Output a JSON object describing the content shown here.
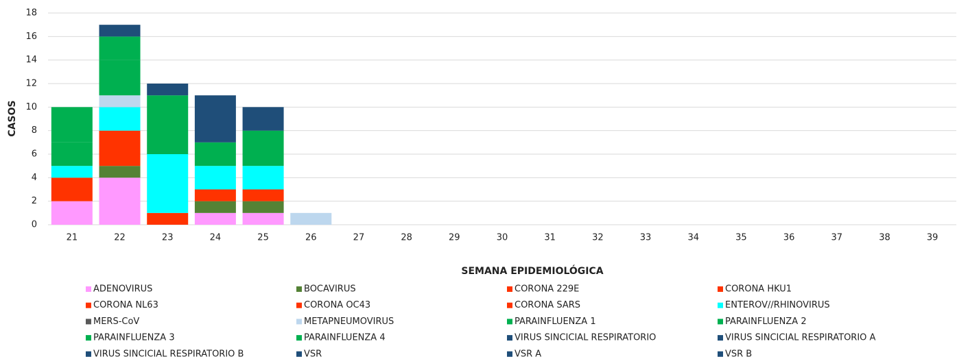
{
  "chart_data": {
    "type": "stacked_bar",
    "x_label": "SEMANA EPIDEMIOLÓGICA",
    "y_label": "CASOS",
    "categories": [
      "21",
      "22",
      "23",
      "24",
      "25",
      "26",
      "27",
      "28",
      "29",
      "30",
      "31",
      "32",
      "33",
      "34",
      "35",
      "36",
      "37",
      "38",
      "39"
    ],
    "ylim": [
      0,
      18
    ],
    "yticks": [
      0,
      2,
      4,
      6,
      8,
      10,
      12,
      14,
      16,
      18
    ],
    "grid": true,
    "legend": "bottom",
    "series": [
      {
        "name": "ADENOVIRUS",
        "color": "#ff99ff",
        "values": [
          2,
          4,
          0,
          1,
          1,
          0,
          0,
          0,
          0,
          0,
          0,
          0,
          0,
          0,
          0,
          0,
          0,
          0,
          0
        ]
      },
      {
        "name": "BOCAVIRUS",
        "color": "#548235",
        "values": [
          0,
          1,
          0,
          1,
          1,
          0,
          0,
          0,
          0,
          0,
          0,
          0,
          0,
          0,
          0,
          0,
          0,
          0,
          0
        ]
      },
      {
        "name": "CORONA 229E",
        "color": "#ff3300",
        "values": [
          0,
          0,
          0,
          0,
          0,
          0,
          0,
          0,
          0,
          0,
          0,
          0,
          0,
          0,
          0,
          0,
          0,
          0,
          0
        ]
      },
      {
        "name": "CORONA HKU1",
        "color": "#ff3300",
        "values": [
          0,
          0,
          0,
          0,
          0,
          0,
          0,
          0,
          0,
          0,
          0,
          0,
          0,
          0,
          0,
          0,
          0,
          0,
          0
        ]
      },
      {
        "name": "CORONA NL63",
        "color": "#ff3300",
        "values": [
          2,
          3,
          1,
          1,
          1,
          0,
          0,
          0,
          0,
          0,
          0,
          0,
          0,
          0,
          0,
          0,
          0,
          0,
          0
        ]
      },
      {
        "name": "CORONA OC43",
        "color": "#ff3300",
        "values": [
          0,
          0,
          0,
          0,
          0,
          0,
          0,
          0,
          0,
          0,
          0,
          0,
          0,
          0,
          0,
          0,
          0,
          0,
          0
        ]
      },
      {
        "name": "CORONA SARS",
        "color": "#ff3300",
        "values": [
          0,
          0,
          0,
          0,
          0,
          0,
          0,
          0,
          0,
          0,
          0,
          0,
          0,
          0,
          0,
          0,
          0,
          0,
          0
        ]
      },
      {
        "name": "ENTEROV//RHINOVIRUS",
        "color": "#00ffff",
        "values": [
          1,
          2,
          5,
          2,
          2,
          0,
          0,
          0,
          0,
          0,
          0,
          0,
          0,
          0,
          0,
          0,
          0,
          0,
          0
        ]
      },
      {
        "name": "MERS-CoV",
        "color": "#595959",
        "values": [
          0,
          0,
          0,
          0,
          0,
          0,
          0,
          0,
          0,
          0,
          0,
          0,
          0,
          0,
          0,
          0,
          0,
          0,
          0
        ]
      },
      {
        "name": "METAPNEUMOVIRUS",
        "color": "#bdd7ee",
        "values": [
          0,
          1,
          0,
          0,
          0,
          1,
          0,
          0,
          0,
          0,
          0,
          0,
          0,
          0,
          0,
          0,
          0,
          0,
          0
        ]
      },
      {
        "name": "PARAINFLUENZA 1",
        "color": "#00b050",
        "values": [
          2,
          3,
          5,
          2,
          3,
          0,
          0,
          0,
          0,
          0,
          0,
          0,
          0,
          0,
          0,
          0,
          0,
          0,
          0
        ]
      },
      {
        "name": "PARAINFLUENZA 2",
        "color": "#00b050",
        "values": [
          0,
          0,
          0,
          0,
          0,
          0,
          0,
          0,
          0,
          0,
          0,
          0,
          0,
          0,
          0,
          0,
          0,
          0,
          0
        ]
      },
      {
        "name": "PARAINFLUENZA 3",
        "color": "#00b050",
        "values": [
          3,
          2,
          0,
          0,
          0,
          0,
          0,
          0,
          0,
          0,
          0,
          0,
          0,
          0,
          0,
          0,
          0,
          0,
          0
        ]
      },
      {
        "name": "PARAINFLUENZA 4",
        "color": "#00b050",
        "values": [
          0,
          0,
          0,
          0,
          0,
          0,
          0,
          0,
          0,
          0,
          0,
          0,
          0,
          0,
          0,
          0,
          0,
          0,
          0
        ]
      },
      {
        "name": "VIRUS SINCICIAL RESPIRATORIO",
        "color": "#1f4e79",
        "values": [
          0,
          0,
          0,
          0,
          0,
          0,
          0,
          0,
          0,
          0,
          0,
          0,
          0,
          0,
          0,
          0,
          0,
          0,
          0
        ]
      },
      {
        "name": "VIRUS SINCICIAL RESPIRATORIO A",
        "color": "#1f4e79",
        "values": [
          0,
          0,
          0,
          0,
          0,
          0,
          0,
          0,
          0,
          0,
          0,
          0,
          0,
          0,
          0,
          0,
          0,
          0,
          0
        ]
      },
      {
        "name": "VIRUS SINCICIAL RESPIRATORIO B",
        "color": "#1f4e79",
        "values": [
          0,
          0,
          0,
          0,
          0,
          0,
          0,
          0,
          0,
          0,
          0,
          0,
          0,
          0,
          0,
          0,
          0,
          0,
          0
        ]
      },
      {
        "name": "VSR",
        "color": "#1f4e79",
        "values": [
          0,
          1,
          1,
          4,
          2,
          0,
          0,
          0,
          0,
          0,
          0,
          0,
          0,
          0,
          0,
          0,
          0,
          0,
          0
        ]
      },
      {
        "name": "VSR A",
        "color": "#1f4e79",
        "values": [
          0,
          0,
          0,
          0,
          0,
          0,
          0,
          0,
          0,
          0,
          0,
          0,
          0,
          0,
          0,
          0,
          0,
          0,
          0
        ]
      },
      {
        "name": "VSR B",
        "color": "#1f4e79",
        "values": [
          0,
          0,
          0,
          0,
          0,
          0,
          0,
          0,
          0,
          0,
          0,
          0,
          0,
          0,
          0,
          0,
          0,
          0,
          0
        ]
      }
    ]
  }
}
